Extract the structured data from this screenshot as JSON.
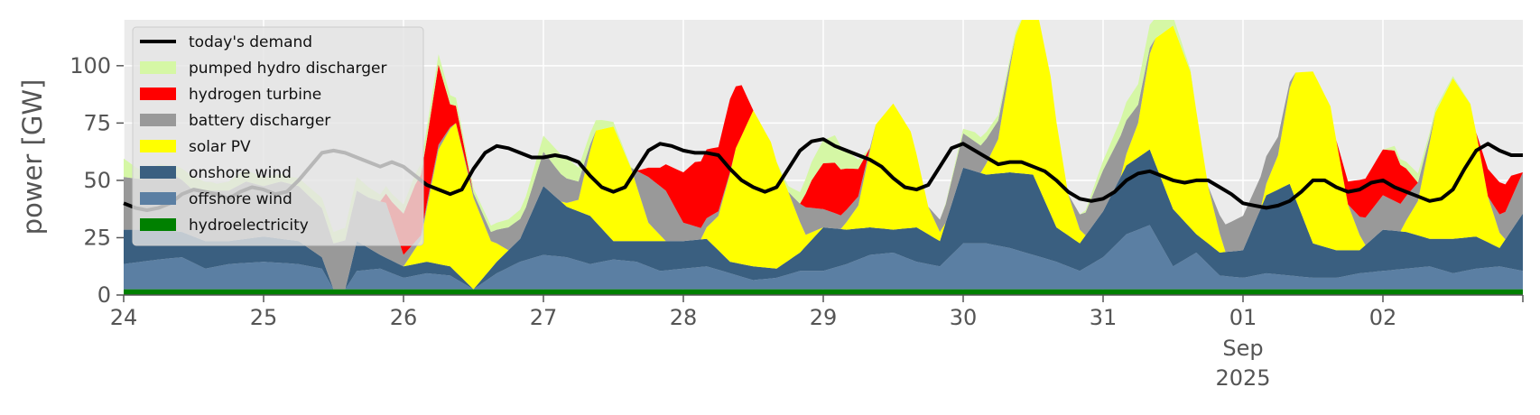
{
  "chart_data": {
    "type": "area",
    "ylabel": "power [GW]",
    "ylim": [
      0,
      120
    ],
    "yticks": [
      0,
      25,
      50,
      75,
      100
    ],
    "xlim": [
      0,
      240
    ],
    "x_unit": "hours since 2025-08-24 00:00",
    "xticks": [
      {
        "x": 0,
        "label": "24"
      },
      {
        "x": 24,
        "label": "25"
      },
      {
        "x": 48,
        "label": "26"
      },
      {
        "x": 72,
        "label": "27"
      },
      {
        "x": 96,
        "label": "28"
      },
      {
        "x": 120,
        "label": "29"
      },
      {
        "x": 144,
        "label": "30"
      },
      {
        "x": 168,
        "label": "31"
      },
      {
        "x": 192,
        "label": "01",
        "sub": [
          "Sep",
          "2025"
        ]
      },
      {
        "x": 216,
        "label": "02"
      }
    ],
    "grid": true,
    "stacked": true,
    "legend_position": "top-left",
    "series": [
      {
        "name": "hydroelectricity",
        "color": "#008000",
        "x": [
          0,
          24,
          48,
          72,
          96,
          120,
          144,
          168,
          192,
          216,
          240
        ],
        "values": [
          2.5,
          2.5,
          2.5,
          2.5,
          2.5,
          2.5,
          2.5,
          2.5,
          2.5,
          2.5,
          2.5
        ]
      },
      {
        "name": "offshore wind",
        "color": "#5b7fa3",
        "x": [
          0,
          6,
          10,
          14,
          18,
          24,
          30,
          34,
          36,
          38,
          40,
          44,
          48,
          52,
          56,
          60,
          64,
          68,
          72,
          76,
          80,
          84,
          88,
          92,
          96,
          100,
          104,
          108,
          112,
          116,
          120,
          124,
          128,
          132,
          136,
          140,
          144,
          148,
          152,
          156,
          160,
          164,
          168,
          172,
          176,
          180,
          184,
          188,
          192,
          196,
          200,
          204,
          208,
          212,
          216,
          220,
          224,
          228,
          232,
          236,
          240
        ],
        "values": [
          11,
          13,
          14,
          9,
          11,
          12,
          11,
          9,
          0,
          0,
          8,
          9,
          5,
          7,
          6,
          0,
          7,
          12,
          15,
          14,
          11,
          13,
          12,
          8,
          9,
          10,
          7,
          4,
          5,
          8,
          8,
          11,
          15,
          16,
          12,
          10,
          20,
          20,
          18,
          15,
          12,
          8,
          14,
          24,
          28,
          10,
          16,
          6,
          5,
          7,
          6,
          5,
          5,
          7,
          8,
          9,
          10,
          7,
          9,
          10,
          8
        ]
      },
      {
        "name": "onshore wind",
        "color": "#3a5f80",
        "x": [
          0,
          6,
          10,
          14,
          18,
          24,
          30,
          34,
          36,
          38,
          40,
          44,
          48,
          52,
          56,
          60,
          64,
          68,
          72,
          76,
          80,
          84,
          88,
          92,
          96,
          100,
          104,
          108,
          112,
          116,
          120,
          124,
          128,
          132,
          136,
          140,
          144,
          148,
          152,
          156,
          160,
          164,
          168,
          172,
          176,
          180,
          184,
          188,
          192,
          196,
          200,
          204,
          208,
          212,
          216,
          220,
          224,
          228,
          232,
          236,
          240
        ],
        "values": [
          15,
          13,
          11,
          12,
          10,
          11,
          10,
          5,
          0,
          0,
          13,
          6,
          5,
          5,
          4,
          0,
          5,
          10,
          30,
          22,
          21,
          8,
          9,
          13,
          12,
          12,
          5,
          6,
          4,
          8,
          19,
          15,
          12,
          10,
          15,
          11,
          33,
          30,
          33,
          35,
          15,
          12,
          20,
          30,
          33,
          25,
          8,
          10,
          12,
          34,
          40,
          15,
          12,
          10,
          18,
          16,
          12,
          15,
          14,
          8,
          25
        ]
      },
      {
        "name": "solar PV",
        "color": "#ffff00",
        "x": [
          0,
          3,
          6,
          9,
          12,
          15,
          18,
          21,
          24,
          27,
          30,
          33,
          36,
          39,
          42,
          45,
          48,
          51,
          54,
          57,
          60,
          63,
          66,
          69,
          72,
          75,
          78,
          81,
          84,
          87,
          90,
          93,
          96,
          99,
          102,
          105,
          108,
          111,
          114,
          117,
          120,
          123,
          126,
          129,
          132,
          135,
          138,
          141,
          144,
          147,
          150,
          153,
          156,
          159,
          162,
          165,
          168,
          171,
          174,
          177,
          180,
          183,
          186,
          189,
          192,
          195,
          198,
          201,
          204,
          207,
          210,
          213,
          216,
          219,
          222,
          225,
          228,
          231,
          234,
          237,
          240
        ],
        "values": [
          0,
          0,
          0,
          0,
          0,
          0,
          0,
          0,
          0,
          0,
          0,
          0,
          0,
          0,
          0,
          0,
          0,
          10,
          50,
          65,
          40,
          12,
          0,
          0,
          0,
          0,
          5,
          40,
          50,
          32,
          8,
          0,
          0,
          0,
          15,
          50,
          68,
          55,
          30,
          5,
          0,
          0,
          10,
          45,
          55,
          42,
          12,
          0,
          0,
          0,
          15,
          60,
          80,
          60,
          18,
          0,
          0,
          0,
          15,
          55,
          80,
          68,
          25,
          0,
          0,
          0,
          15,
          55,
          75,
          62,
          20,
          0,
          0,
          0,
          15,
          55,
          70,
          58,
          20,
          0,
          0
        ]
      },
      {
        "name": "battery discharger",
        "color": "#999999",
        "x": [
          0,
          3,
          6,
          9,
          12,
          15,
          18,
          21,
          24,
          27,
          30,
          33,
          36,
          39,
          42,
          45,
          48,
          51,
          54,
          57,
          60,
          63,
          66,
          69,
          72,
          75,
          78,
          81,
          84,
          87,
          90,
          93,
          96,
          99,
          102,
          105,
          108,
          111,
          114,
          117,
          120,
          123,
          126,
          129,
          132,
          135,
          138,
          141,
          144,
          147,
          150,
          153,
          156,
          159,
          162,
          165,
          168,
          171,
          174,
          177,
          180,
          183,
          186,
          189,
          192,
          195,
          198,
          201,
          204,
          207,
          210,
          213,
          216,
          219,
          222,
          225,
          228,
          231,
          234,
          237,
          240
        ],
        "values": [
          23,
          22,
          25,
          24,
          20,
          22,
          22,
          25,
          22,
          25,
          24,
          22,
          20,
          22,
          22,
          24,
          5,
          2,
          2,
          0,
          2,
          4,
          10,
          8,
          15,
          12,
          8,
          0,
          0,
          0,
          20,
          22,
          8,
          5,
          2,
          0,
          0,
          0,
          0,
          12,
          8,
          6,
          4,
          0,
          0,
          0,
          0,
          8,
          15,
          12,
          8,
          0,
          0,
          0,
          0,
          10,
          18,
          18,
          8,
          0,
          0,
          0,
          0,
          12,
          15,
          14,
          8,
          0,
          0,
          0,
          0,
          12,
          15,
          12,
          8,
          0,
          0,
          0,
          0,
          12,
          18
        ]
      },
      {
        "name": "hydrogen turbine",
        "color": "#ff0000",
        "x": [
          0,
          12,
          24,
          36,
          44,
          46,
          48,
          50,
          52,
          54,
          56,
          60,
          64,
          68,
          72,
          80,
          88,
          92,
          94,
          96,
          98,
          100,
          102,
          104,
          106,
          108,
          112,
          116,
          118,
          120,
          122,
          124,
          126,
          128,
          132,
          140,
          144,
          156,
          168,
          180,
          192,
          204,
          208,
          210,
          212,
          214,
          216,
          218,
          220,
          222,
          224,
          228,
          232,
          234,
          236,
          238,
          240
        ],
        "values": [
          0,
          0,
          0,
          0,
          0,
          8,
          18,
          25,
          28,
          35,
          10,
          0,
          0,
          0,
          0,
          0,
          0,
          8,
          15,
          22,
          28,
          30,
          28,
          32,
          22,
          0,
          0,
          0,
          12,
          20,
          22,
          18,
          12,
          0,
          0,
          0,
          0,
          0,
          0,
          0,
          0,
          0,
          0,
          10,
          16,
          18,
          20,
          22,
          12,
          0,
          0,
          0,
          0,
          12,
          14,
          10,
          0
        ]
      },
      {
        "name": "pumped hydro discharger",
        "color": "#d5f7a5",
        "x": [
          0,
          2,
          4,
          8,
          12,
          16,
          20,
          24,
          28,
          32,
          36,
          40,
          44,
          48,
          52,
          56,
          60,
          64,
          68,
          72,
          74,
          76,
          78,
          80,
          82,
          84,
          88,
          96,
          104,
          112,
          116,
          118,
          120,
          122,
          124,
          128,
          136,
          140,
          144,
          146,
          148,
          152,
          156,
          164,
          168,
          170,
          172,
          174,
          176,
          178,
          180,
          184,
          192,
          200,
          208,
          216,
          218,
          220,
          222,
          224,
          232,
          240
        ],
        "values": [
          8,
          5,
          3,
          4,
          6,
          3,
          5,
          4,
          3,
          4,
          5,
          6,
          3,
          4,
          5,
          4,
          2,
          3,
          4,
          7,
          8,
          9,
          6,
          5,
          4,
          2,
          0,
          0,
          0,
          0,
          5,
          8,
          10,
          12,
          8,
          0,
          0,
          0,
          2,
          4,
          3,
          2,
          0,
          0,
          4,
          6,
          8,
          9,
          10,
          8,
          4,
          0,
          0,
          0,
          0,
          0,
          2,
          3,
          4,
          2,
          0,
          0
        ]
      }
    ],
    "demand": {
      "name": "today's demand",
      "color": "#000000",
      "x": [
        0,
        2,
        4,
        6,
        8,
        10,
        12,
        14,
        16,
        18,
        20,
        22,
        24,
        26,
        28,
        30,
        32,
        34,
        36,
        38,
        40,
        42,
        44,
        46,
        48,
        50,
        52,
        54,
        56,
        58,
        60,
        62,
        64,
        66,
        68,
        70,
        72,
        74,
        76,
        78,
        80,
        82,
        84,
        86,
        88,
        90,
        92,
        94,
        96,
        98,
        100,
        102,
        104,
        106,
        108,
        110,
        112,
        114,
        116,
        118,
        120,
        122,
        124,
        126,
        128,
        130,
        132,
        134,
        136,
        138,
        140,
        142,
        144,
        146,
        148,
        150,
        152,
        154,
        156,
        158,
        160,
        162,
        164,
        166,
        168,
        170,
        172,
        174,
        176,
        178,
        180,
        182,
        184,
        186,
        188,
        190,
        192,
        194,
        196,
        198,
        200,
        202,
        204,
        206,
        208,
        210,
        212,
        214,
        216,
        218,
        220,
        222,
        224,
        226,
        228,
        230,
        232,
        234,
        236,
        238,
        240
      ],
      "values": [
        40,
        38,
        37,
        38,
        40,
        44,
        46,
        45,
        44,
        42,
        45,
        47,
        46,
        44,
        45,
        50,
        56,
        62,
        63,
        62,
        60,
        58,
        56,
        58,
        56,
        52,
        48,
        46,
        44,
        46,
        55,
        62,
        65,
        64,
        62,
        60,
        60,
        61,
        60,
        58,
        52,
        47,
        45,
        47,
        55,
        63,
        66,
        65,
        63,
        62,
        62,
        61,
        55,
        50,
        47,
        45,
        47,
        55,
        63,
        67,
        68,
        65,
        63,
        61,
        59,
        56,
        51,
        47,
        46,
        48,
        56,
        64,
        66,
        63,
        60,
        57,
        58,
        58,
        56,
        54,
        50,
        45,
        42,
        41,
        42,
        45,
        50,
        53,
        54,
        52,
        50,
        49,
        50,
        50,
        47,
        44,
        40,
        39,
        38,
        39,
        41,
        45,
        50,
        50,
        47,
        45,
        46,
        49,
        50,
        47,
        45,
        43,
        41,
        42,
        46,
        55,
        63,
        66,
        63,
        61,
        61
      ]
    }
  }
}
